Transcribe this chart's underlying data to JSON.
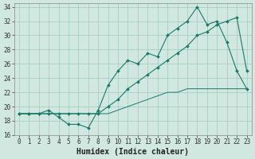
{
  "xlabel": "Humidex (Indice chaleur)",
  "background_color": "#d0e8e0",
  "grid_color": "#a8cec4",
  "line_color": "#1a7a6a",
  "xlim_min": -0.5,
  "xlim_max": 23.5,
  "ylim_min": 16,
  "ylim_max": 34.5,
  "xticks": [
    0,
    1,
    2,
    3,
    4,
    5,
    6,
    7,
    8,
    9,
    10,
    11,
    12,
    13,
    14,
    15,
    16,
    17,
    18,
    19,
    20,
    21,
    22,
    23
  ],
  "yticks": [
    16,
    18,
    20,
    22,
    24,
    26,
    28,
    30,
    32,
    34
  ],
  "line1_x": [
    0,
    1,
    2,
    3,
    4,
    5,
    6,
    7,
    8,
    9,
    10,
    11,
    12,
    13,
    14,
    15,
    16,
    17,
    18,
    19,
    20,
    21,
    22,
    23
  ],
  "line1_y": [
    19.0,
    19.0,
    19.0,
    19.5,
    18.5,
    17.5,
    17.5,
    17.0,
    19.5,
    23.0,
    25.0,
    26.5,
    26.0,
    27.5,
    27.0,
    30.0,
    31.0,
    32.0,
    34.0,
    31.5,
    32.0,
    29.0,
    25.0,
    22.5
  ],
  "line2_x": [
    0,
    1,
    2,
    3,
    4,
    5,
    6,
    7,
    8,
    9,
    10,
    11,
    12,
    13,
    14,
    15,
    16,
    17,
    18,
    19,
    20,
    21,
    22,
    23
  ],
  "line2_y": [
    19.0,
    19.0,
    19.0,
    19.0,
    19.0,
    19.0,
    19.0,
    19.0,
    19.0,
    20.0,
    21.0,
    22.5,
    23.5,
    24.5,
    25.5,
    26.5,
    27.5,
    28.5,
    30.0,
    30.5,
    31.5,
    32.0,
    32.5,
    25.0
  ],
  "line3_x": [
    0,
    1,
    2,
    3,
    4,
    5,
    6,
    7,
    8,
    9,
    10,
    11,
    12,
    13,
    14,
    15,
    16,
    17,
    18,
    19,
    20,
    21,
    22,
    23
  ],
  "line3_y": [
    19.0,
    19.0,
    19.0,
    19.0,
    19.0,
    19.0,
    19.0,
    19.0,
    19.0,
    19.0,
    19.5,
    20.0,
    20.5,
    21.0,
    21.5,
    22.0,
    22.0,
    22.5,
    22.5,
    22.5,
    22.5,
    22.5,
    22.5,
    22.5
  ],
  "tick_fontsize": 5.5,
  "xlabel_fontsize": 7.0
}
